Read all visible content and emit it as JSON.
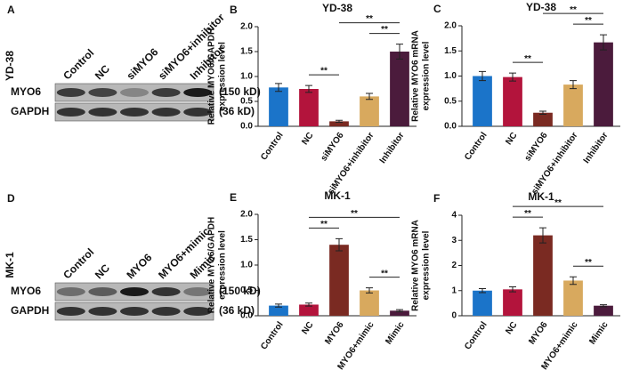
{
  "blots": [
    {
      "panel": "A",
      "cell_line": "YD-38",
      "lanes": [
        "Control",
        "NC",
        "siMYO6",
        "siMYO6+inhibitor",
        "Inhibitor"
      ],
      "rows": [
        {
          "name": "MYO6",
          "size": "(150 kD)"
        },
        {
          "name": "GAPDH",
          "size": "(36 kD)"
        }
      ]
    },
    {
      "panel": "D",
      "cell_line": "MK-1",
      "lanes": [
        "Control",
        "NC",
        "MYO6",
        "MYO6+mimic",
        "Mimic"
      ],
      "rows": [
        {
          "name": "MYO6",
          "size": "(150 kD)"
        },
        {
          "name": "GAPDH",
          "size": "(36 kD)"
        }
      ]
    }
  ],
  "chart_data": [
    {
      "type": "bar",
      "panel": "B",
      "title": "YD-38",
      "ylabel": [
        "Relative MYO6/GAPDH",
        "expression  level"
      ],
      "categories": [
        "Control",
        "NC",
        "siMYO6",
        "siMYO6+inhibitor",
        "Inhibitor"
      ],
      "values": [
        0.78,
        0.75,
        0.1,
        0.6,
        1.5
      ],
      "errors": [
        0.08,
        0.07,
        0.02,
        0.06,
        0.15
      ],
      "colors": [
        "#1b74c9",
        "#b3143c",
        "#7a2a22",
        "#d8a95e",
        "#4b1b3c"
      ],
      "ylim": [
        0,
        2
      ],
      "yticks": [
        {
          "value": 0,
          "label": "0.0"
        },
        0.5,
        {
          "value": 1,
          "label": "1.0"
        },
        1.5,
        {
          "value": 2,
          "label": "2.0"
        }
      ],
      "annotations": [
        {
          "from": 1,
          "to": 2,
          "label": "**"
        },
        {
          "from": 3,
          "to": 4,
          "label": "**"
        },
        {
          "from": 2,
          "to": 4,
          "label": "**"
        }
      ]
    },
    {
      "type": "bar",
      "panel": "C",
      "title": "YD-38",
      "ylabel": [
        "Relative MYO6 mRNA",
        "expression level"
      ],
      "categories": [
        "Control",
        "NC",
        "siMYO6",
        "siMYO6+inhibitor",
        "Inhibitor"
      ],
      "values": [
        1.0,
        0.98,
        0.27,
        0.83,
        1.67
      ],
      "errors": [
        0.09,
        0.08,
        0.03,
        0.08,
        0.15
      ],
      "colors": [
        "#1b74c9",
        "#b3143c",
        "#7a2a22",
        "#d8a95e",
        "#4b1b3c"
      ],
      "ylim": [
        0,
        2
      ],
      "yticks": [
        {
          "value": 0,
          "label": "0.0"
        },
        0.5,
        {
          "value": 1,
          "label": "1.0"
        },
        1.5,
        {
          "value": 2,
          "label": "2.0"
        }
      ],
      "annotations": [
        {
          "from": 1,
          "to": 2,
          "label": "**"
        },
        {
          "from": 3,
          "to": 4,
          "label": "**"
        },
        {
          "from": 2,
          "to": 4,
          "label": "**"
        }
      ]
    },
    {
      "type": "bar",
      "panel": "E",
      "title": "MK-1",
      "ylabel": [
        "Relative MYO6/GAPDH",
        "expression  level"
      ],
      "categories": [
        "Control",
        "NC",
        "MYO6",
        "MYO6+mimic",
        "Mimic"
      ],
      "values": [
        0.2,
        0.22,
        1.4,
        0.5,
        0.1
      ],
      "errors": [
        0.03,
        0.03,
        0.12,
        0.05,
        0.02
      ],
      "colors": [
        "#1b74c9",
        "#b3143c",
        "#7a2a22",
        "#d8a95e",
        "#4b1b3c"
      ],
      "ylim": [
        0,
        2
      ],
      "yticks": [
        {
          "value": 0,
          "label": "0.0"
        },
        0.5,
        {
          "value": 1,
          "label": "1.0"
        },
        1.5,
        {
          "value": 2,
          "label": "2.0"
        }
      ],
      "annotations": [
        {
          "from": 1,
          "to": 2,
          "label": "**"
        },
        {
          "from": 3,
          "to": 4,
          "label": "**"
        },
        {
          "from": 1,
          "to": 4,
          "label": "**"
        }
      ]
    },
    {
      "type": "bar",
      "panel": "F",
      "title": "MK-1",
      "ylabel": [
        "Relative MYO6 mRNA",
        "expression level"
      ],
      "categories": [
        "Control",
        "NC",
        "MYO6",
        "MYO6+mimic",
        "Mimic"
      ],
      "values": [
        1.0,
        1.05,
        3.2,
        1.4,
        0.4
      ],
      "errors": [
        0.08,
        0.1,
        0.3,
        0.15,
        0.04
      ],
      "colors": [
        "#1b74c9",
        "#b3143c",
        "#7a2a22",
        "#d8a95e",
        "#4b1b3c"
      ],
      "ylim": [
        0,
        4
      ],
      "yticks": [
        0,
        1,
        2,
        3,
        4
      ],
      "annotations": [
        {
          "from": 1,
          "to": 2,
          "label": "**"
        },
        {
          "from": 3,
          "to": 4,
          "label": "**"
        },
        {
          "from": 1,
          "to": 4,
          "label": "**"
        }
      ]
    }
  ]
}
